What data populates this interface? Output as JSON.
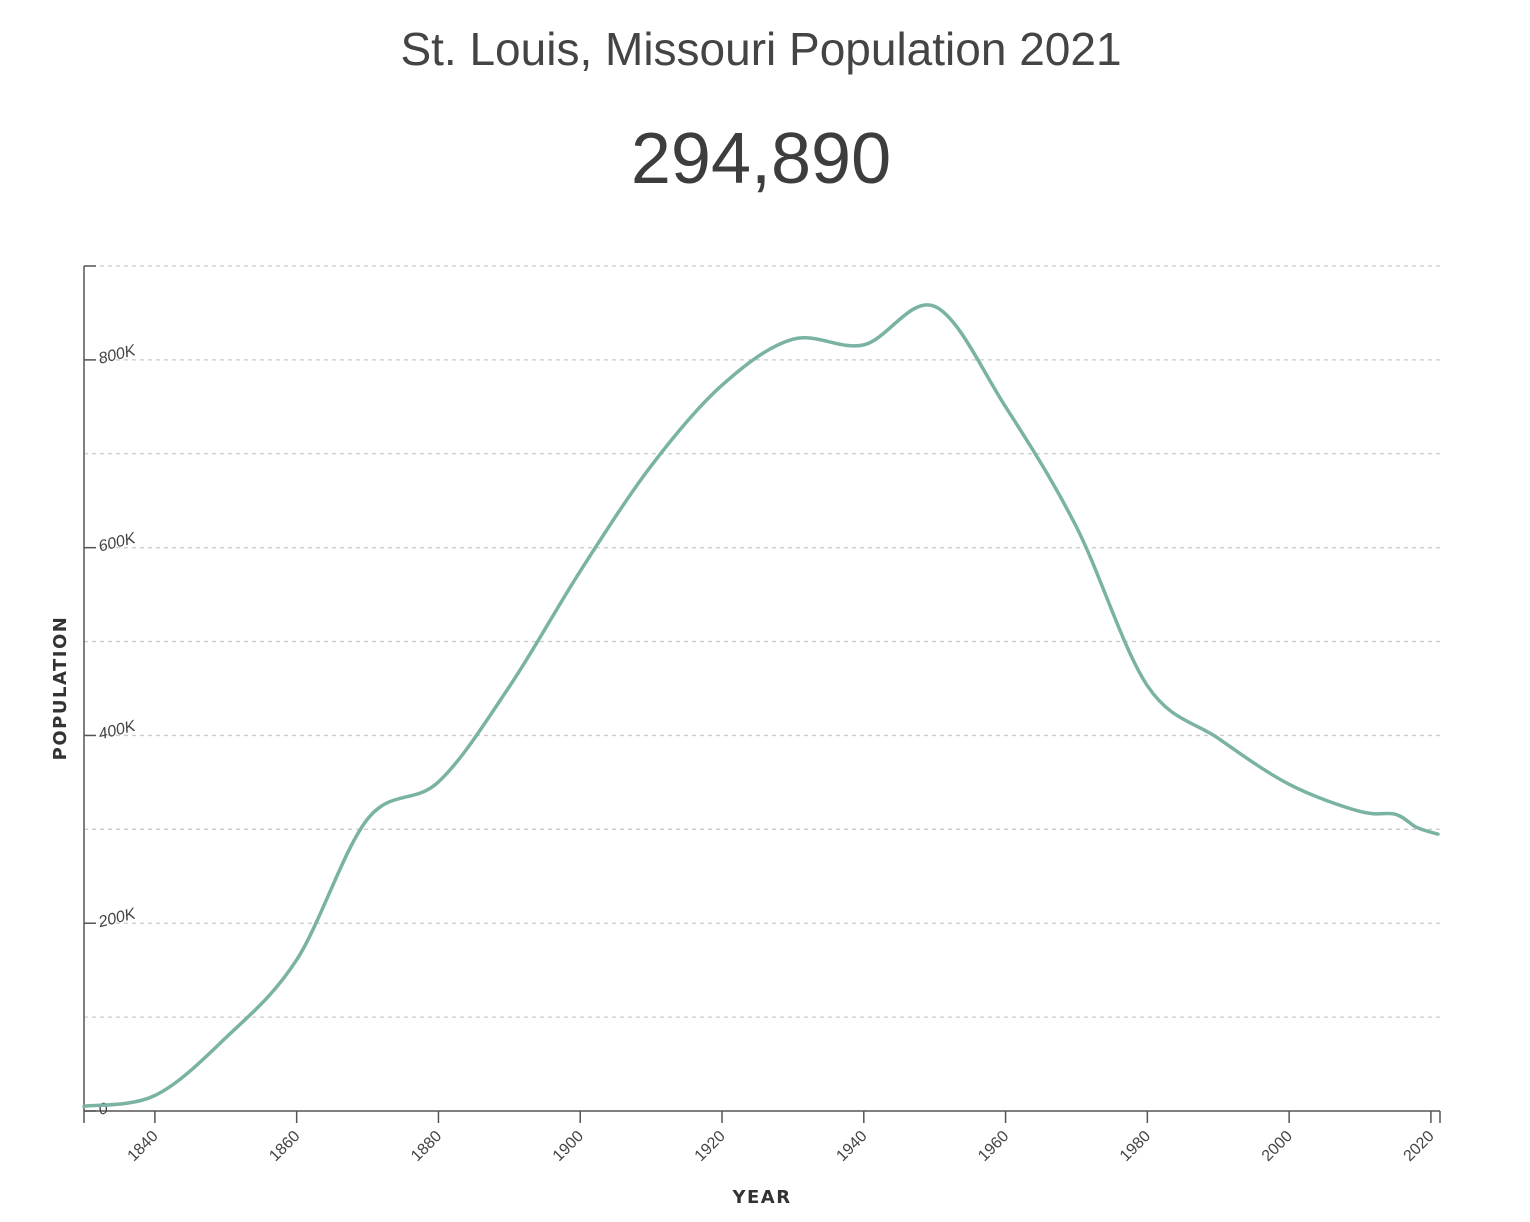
{
  "header": {
    "title": "St. Louis, Missouri Population 2021",
    "current_population": "294,890"
  },
  "colors": {
    "line": "#7ab3a3",
    "grid": "#cccccc",
    "axis": "#555555",
    "text": "#444444"
  },
  "chart_data": {
    "type": "line",
    "xlabel": "YEAR",
    "ylabel": "POPULATION",
    "xlim": [
      1830,
      2021
    ],
    "ylim": [
      0,
      900000
    ],
    "x_ticks": [
      1840,
      1860,
      1880,
      1900,
      1920,
      1940,
      1960,
      1980,
      2000,
      2020
    ],
    "x_tick_labels": [
      "1840",
      "1860",
      "1880",
      "1900",
      "1920",
      "1940",
      "1960",
      "1980",
      "2000",
      "2020"
    ],
    "y_ticks": [
      0,
      200000,
      400000,
      600000,
      800000
    ],
    "y_tick_labels": [
      "0",
      "200K",
      "400K",
      "600K",
      "800K"
    ],
    "grid": true,
    "series": [
      {
        "x": [
          1830,
          1840,
          1850,
          1860,
          1870,
          1880,
          1890,
          1900,
          1910,
          1920,
          1930,
          1940,
          1950,
          1960,
          1970,
          1980,
          1990,
          2000,
          2010,
          2015,
          2018,
          2021
        ],
        "values": [
          5000,
          16500,
          78000,
          161000,
          311000,
          350500,
          452000,
          575000,
          687000,
          773000,
          822000,
          816000,
          857000,
          750000,
          622000,
          453000,
          397000,
          348000,
          319000,
          316000,
          302000,
          294890
        ]
      }
    ]
  }
}
